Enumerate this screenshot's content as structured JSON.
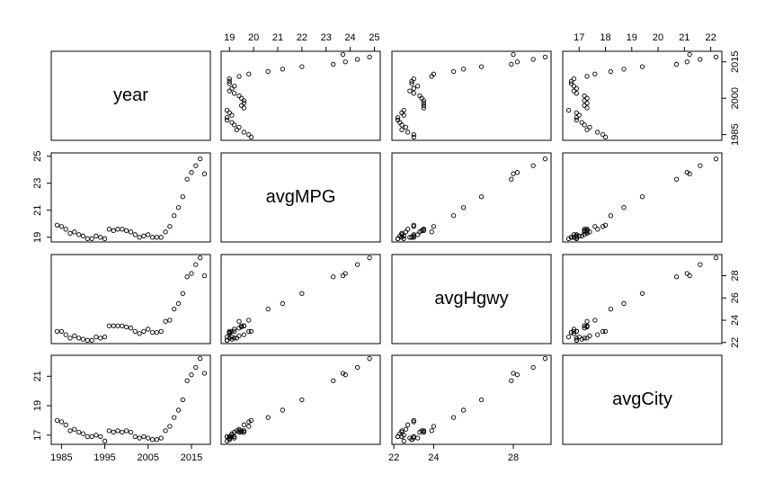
{
  "chart_data": {
    "type": "scatter-matrix",
    "point_color": "#000000",
    "variables": [
      {
        "name": "year",
        "values": [
          1984,
          1985,
          1986,
          1987,
          1988,
          1989,
          1990,
          1991,
          1992,
          1993,
          1994,
          1995,
          1996,
          1997,
          1998,
          1999,
          2000,
          2001,
          2002,
          2003,
          2004,
          2005,
          2006,
          2007,
          2008,
          2009,
          2010,
          2011,
          2012,
          2013,
          2014,
          2015,
          2016,
          2017,
          2018
        ],
        "lim": [
          1982.64,
          2019.36
        ],
        "xticks": [
          1985,
          1995,
          2005,
          2015
        ],
        "yticks": [
          1985,
          2000,
          2015
        ]
      },
      {
        "name": "avgMPG",
        "values": [
          19.9,
          19.8,
          19.6,
          19.3,
          19.4,
          19.2,
          19.1,
          18.9,
          18.9,
          19.1,
          19.0,
          18.9,
          19.6,
          19.5,
          19.6,
          19.6,
          19.5,
          19.4,
          19.2,
          19.0,
          19.1,
          19.2,
          19.0,
          19.0,
          19.0,
          19.4,
          19.8,
          20.6,
          21.2,
          22.0,
          23.3,
          23.8,
          24.3,
          24.8,
          23.7
        ],
        "lim": [
          18.656,
          25.244
        ],
        "xticks": [
          19,
          20,
          21,
          22,
          23,
          24,
          25
        ],
        "yticks": [
          19,
          21,
          23,
          25
        ]
      },
      {
        "name": "avgHgwy",
        "values": [
          23.0,
          23.0,
          22.7,
          22.4,
          22.6,
          22.4,
          22.3,
          22.2,
          22.2,
          22.5,
          22.4,
          22.5,
          23.5,
          23.5,
          23.5,
          23.5,
          23.4,
          23.3,
          23.0,
          22.8,
          23.0,
          23.2,
          22.9,
          22.9,
          23.0,
          23.9,
          24.0,
          25.0,
          25.5,
          26.4,
          27.9,
          28.2,
          29.0,
          29.6,
          28.0
        ],
        "lim": [
          21.904,
          29.896
        ],
        "xticks": [
          22,
          24,
          28
        ],
        "yticks": [
          22,
          24,
          26,
          28
        ]
      },
      {
        "name": "avgCity",
        "values": [
          18.0,
          17.9,
          17.7,
          17.3,
          17.4,
          17.2,
          17.1,
          16.9,
          16.9,
          17.0,
          16.9,
          16.6,
          17.3,
          17.2,
          17.3,
          17.2,
          17.3,
          17.2,
          16.9,
          16.8,
          16.9,
          16.8,
          16.7,
          16.7,
          16.8,
          17.3,
          17.6,
          18.2,
          18.7,
          19.4,
          20.7,
          21.1,
          21.6,
          22.2,
          21.2
        ],
        "lim": [
          16.376,
          22.424
        ],
        "xticks": [
          17,
          18,
          19,
          20,
          21,
          22
        ],
        "yticks": [
          17,
          19,
          21
        ]
      }
    ]
  }
}
